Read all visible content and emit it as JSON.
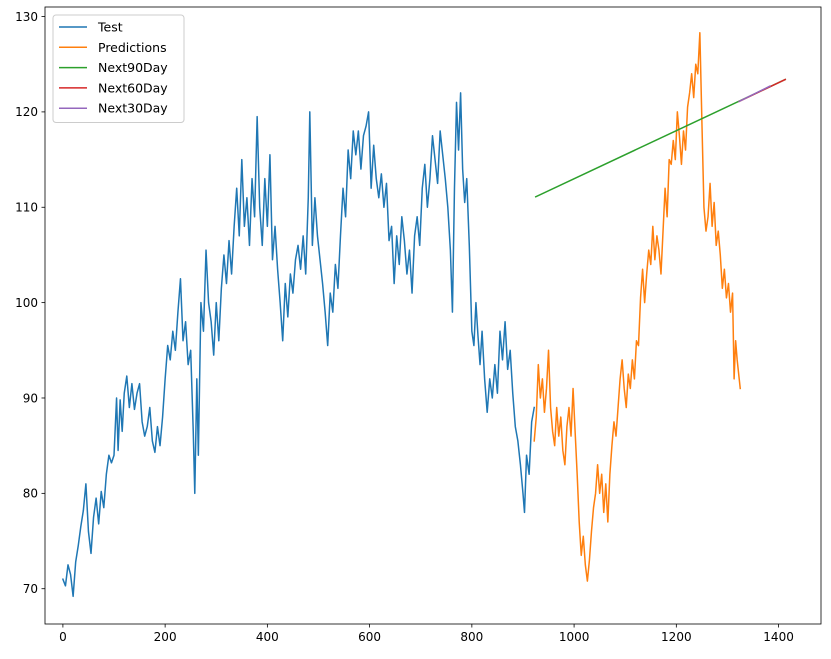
{
  "chart_data": {
    "type": "line",
    "title": "",
    "xlabel": "",
    "ylabel": "",
    "xlim": [
      -35,
      1483
    ],
    "ylim": [
      66.3,
      131.0
    ],
    "xticks": [
      0,
      200,
      400,
      600,
      800,
      1000,
      1200,
      1400
    ],
    "yticks": [
      70,
      80,
      90,
      100,
      110,
      120,
      130
    ],
    "grid": false,
    "legend_position": "top-left",
    "series": [
      {
        "name": "Test",
        "color": "#1f77b4",
        "points": [
          [
            0,
            71
          ],
          [
            5,
            70.3
          ],
          [
            10,
            72.5
          ],
          [
            15,
            71.5
          ],
          [
            20,
            69.2
          ],
          [
            25,
            72.8
          ],
          [
            30,
            74.5
          ],
          [
            35,
            76.5
          ],
          [
            40,
            78.2
          ],
          [
            45,
            81
          ],
          [
            50,
            76
          ],
          [
            55,
            73.7
          ],
          [
            60,
            77.5
          ],
          [
            65,
            79.5
          ],
          [
            70,
            76.8
          ],
          [
            75,
            80.2
          ],
          [
            80,
            78.5
          ],
          [
            85,
            82
          ],
          [
            90,
            84
          ],
          [
            95,
            83.2
          ],
          [
            100,
            84
          ],
          [
            105,
            90
          ],
          [
            108,
            84.5
          ],
          [
            112,
            89.8
          ],
          [
            116,
            86.5
          ],
          [
            120,
            90.5
          ],
          [
            125,
            92.3
          ],
          [
            130,
            89
          ],
          [
            135,
            91.5
          ],
          [
            140,
            88.8
          ],
          [
            145,
            90.5
          ],
          [
            150,
            91.5
          ],
          [
            155,
            87.5
          ],
          [
            160,
            86
          ],
          [
            165,
            87
          ],
          [
            170,
            89
          ],
          [
            175,
            85.5
          ],
          [
            180,
            84.3
          ],
          [
            185,
            87
          ],
          [
            190,
            85
          ],
          [
            195,
            88
          ],
          [
            200,
            92
          ],
          [
            205,
            95.5
          ],
          [
            210,
            94
          ],
          [
            215,
            97
          ],
          [
            220,
            95
          ],
          [
            225,
            99
          ],
          [
            230,
            102.5
          ],
          [
            235,
            96
          ],
          [
            240,
            98
          ],
          [
            245,
            93.5
          ],
          [
            250,
            95
          ],
          [
            255,
            86.5
          ],
          [
            258,
            80
          ],
          [
            262,
            92
          ],
          [
            265,
            84
          ],
          [
            270,
            100
          ],
          [
            275,
            97
          ],
          [
            280,
            105.5
          ],
          [
            285,
            100
          ],
          [
            290,
            98
          ],
          [
            295,
            94.5
          ],
          [
            300,
            100
          ],
          [
            305,
            96
          ],
          [
            310,
            101.5
          ],
          [
            315,
            105
          ],
          [
            320,
            102
          ],
          [
            325,
            106.5
          ],
          [
            330,
            103
          ],
          [
            335,
            108
          ],
          [
            340,
            112
          ],
          [
            345,
            107
          ],
          [
            350,
            115
          ],
          [
            355,
            108
          ],
          [
            360,
            111
          ],
          [
            365,
            106
          ],
          [
            370,
            113
          ],
          [
            375,
            109
          ],
          [
            380,
            119.5
          ],
          [
            385,
            110
          ],
          [
            390,
            106
          ],
          [
            395,
            113
          ],
          [
            400,
            108
          ],
          [
            405,
            115.5
          ],
          [
            410,
            104.5
          ],
          [
            415,
            108
          ],
          [
            420,
            103.5
          ],
          [
            425,
            100
          ],
          [
            430,
            96
          ],
          [
            435,
            102
          ],
          [
            440,
            98.5
          ],
          [
            445,
            103
          ],
          [
            450,
            101
          ],
          [
            455,
            104.5
          ],
          [
            460,
            106
          ],
          [
            465,
            103.5
          ],
          [
            470,
            107
          ],
          [
            475,
            103
          ],
          [
            480,
            111
          ],
          [
            483,
            120
          ],
          [
            488,
            106
          ],
          [
            493,
            111
          ],
          [
            498,
            107
          ],
          [
            503,
            104.5
          ],
          [
            508,
            102
          ],
          [
            513,
            99
          ],
          [
            518,
            95.5
          ],
          [
            523,
            101
          ],
          [
            528,
            99
          ],
          [
            533,
            104
          ],
          [
            538,
            101.5
          ],
          [
            543,
            107
          ],
          [
            548,
            112
          ],
          [
            553,
            109
          ],
          [
            558,
            116
          ],
          [
            563,
            113
          ],
          [
            568,
            118
          ],
          [
            573,
            115.5
          ],
          [
            578,
            118
          ],
          [
            583,
            114
          ],
          [
            588,
            117.5
          ],
          [
            593,
            118.5
          ],
          [
            598,
            120
          ],
          [
            603,
            112
          ],
          [
            608,
            116.5
          ],
          [
            613,
            113
          ],
          [
            618,
            111
          ],
          [
            623,
            113.5
          ],
          [
            628,
            110
          ],
          [
            633,
            112.5
          ],
          [
            638,
            106.5
          ],
          [
            643,
            108
          ],
          [
            648,
            102
          ],
          [
            653,
            107
          ],
          [
            658,
            104
          ],
          [
            663,
            109
          ],
          [
            668,
            106.5
          ],
          [
            673,
            103
          ],
          [
            678,
            105.5
          ],
          [
            683,
            101
          ],
          [
            688,
            107
          ],
          [
            693,
            109
          ],
          [
            698,
            106
          ],
          [
            703,
            112
          ],
          [
            708,
            114.5
          ],
          [
            713,
            110
          ],
          [
            718,
            113
          ],
          [
            723,
            117.5
          ],
          [
            728,
            115
          ],
          [
            733,
            112.5
          ],
          [
            738,
            118
          ],
          [
            743,
            115.5
          ],
          [
            748,
            113
          ],
          [
            753,
            110
          ],
          [
            758,
            105.5
          ],
          [
            762,
            99
          ],
          [
            766,
            112
          ],
          [
            770,
            121
          ],
          [
            774,
            116
          ],
          [
            778,
            122
          ],
          [
            782,
            114
          ],
          [
            786,
            110.5
          ],
          [
            790,
            113
          ],
          [
            795,
            106
          ],
          [
            800,
            97
          ],
          [
            804,
            95.5
          ],
          [
            808,
            100
          ],
          [
            812,
            96.5
          ],
          [
            816,
            93.5
          ],
          [
            820,
            97
          ],
          [
            825,
            92
          ],
          [
            830,
            88.5
          ],
          [
            835,
            92
          ],
          [
            840,
            90
          ],
          [
            845,
            93.5
          ],
          [
            850,
            90.5
          ],
          [
            855,
            97
          ],
          [
            860,
            94
          ],
          [
            865,
            98
          ],
          [
            870,
            93
          ],
          [
            875,
            95
          ],
          [
            880,
            90.5
          ],
          [
            885,
            87
          ],
          [
            890,
            85.5
          ],
          [
            895,
            83
          ],
          [
            900,
            80
          ],
          [
            903,
            78
          ],
          [
            907,
            84
          ],
          [
            912,
            82
          ],
          [
            917,
            87.5
          ],
          [
            922,
            89
          ]
        ]
      },
      {
        "name": "Predictions",
        "color": "#ff7f0e",
        "points": [
          [
            922,
            85.5
          ],
          [
            926,
            88
          ],
          [
            930,
            93.5
          ],
          [
            934,
            90
          ],
          [
            938,
            92
          ],
          [
            942,
            88.5
          ],
          [
            946,
            91
          ],
          [
            950,
            95
          ],
          [
            954,
            89
          ],
          [
            958,
            86.5
          ],
          [
            962,
            85
          ],
          [
            966,
            89
          ],
          [
            970,
            86
          ],
          [
            974,
            88
          ],
          [
            978,
            84.5
          ],
          [
            982,
            83
          ],
          [
            986,
            87
          ],
          [
            990,
            89
          ],
          [
            994,
            86
          ],
          [
            998,
            91
          ],
          [
            1002,
            86.5
          ],
          [
            1006,
            82
          ],
          [
            1010,
            77
          ],
          [
            1014,
            73.5
          ],
          [
            1018,
            75.5
          ],
          [
            1022,
            72.5
          ],
          [
            1026,
            70.8
          ],
          [
            1030,
            73
          ],
          [
            1034,
            76
          ],
          [
            1038,
            78.5
          ],
          [
            1042,
            80
          ],
          [
            1046,
            83
          ],
          [
            1050,
            80
          ],
          [
            1054,
            82
          ],
          [
            1058,
            78
          ],
          [
            1062,
            81
          ],
          [
            1066,
            77
          ],
          [
            1070,
            82
          ],
          [
            1074,
            85
          ],
          [
            1078,
            87.5
          ],
          [
            1082,
            86
          ],
          [
            1086,
            89
          ],
          [
            1090,
            92
          ],
          [
            1094,
            94
          ],
          [
            1098,
            91
          ],
          [
            1102,
            89
          ],
          [
            1106,
            92.5
          ],
          [
            1110,
            91
          ],
          [
            1114,
            94
          ],
          [
            1118,
            92
          ],
          [
            1122,
            96
          ],
          [
            1126,
            95.5
          ],
          [
            1130,
            100.5
          ],
          [
            1134,
            103.5
          ],
          [
            1138,
            100
          ],
          [
            1142,
            103
          ],
          [
            1146,
            105.5
          ],
          [
            1150,
            104
          ],
          [
            1154,
            108
          ],
          [
            1158,
            104.5
          ],
          [
            1162,
            107
          ],
          [
            1166,
            105.5
          ],
          [
            1170,
            103
          ],
          [
            1174,
            107.5
          ],
          [
            1178,
            112
          ],
          [
            1182,
            109
          ],
          [
            1186,
            115
          ],
          [
            1190,
            114.5
          ],
          [
            1194,
            117
          ],
          [
            1198,
            115
          ],
          [
            1202,
            120
          ],
          [
            1206,
            117.5
          ],
          [
            1210,
            114.5
          ],
          [
            1214,
            118
          ],
          [
            1218,
            116
          ],
          [
            1222,
            120.5
          ],
          [
            1226,
            122
          ],
          [
            1230,
            124
          ],
          [
            1234,
            121.5
          ],
          [
            1238,
            125
          ],
          [
            1242,
            124
          ],
          [
            1246,
            128.3
          ],
          [
            1250,
            119
          ],
          [
            1254,
            110
          ],
          [
            1258,
            107.5
          ],
          [
            1262,
            109
          ],
          [
            1266,
            112.5
          ],
          [
            1270,
            108
          ],
          [
            1274,
            110.5
          ],
          [
            1278,
            106
          ],
          [
            1282,
            107.5
          ],
          [
            1286,
            105
          ],
          [
            1290,
            101.5
          ],
          [
            1294,
            103.5
          ],
          [
            1298,
            100.5
          ],
          [
            1302,
            102
          ],
          [
            1306,
            99
          ],
          [
            1310,
            101
          ],
          [
            1313,
            92
          ],
          [
            1316,
            96
          ],
          [
            1319,
            94
          ],
          [
            1322,
            92.5
          ],
          [
            1325,
            91
          ]
        ]
      },
      {
        "name": "Next90Day",
        "color": "#2ca02c",
        "points": [
          [
            925,
            111.1
          ],
          [
            1413,
            123.4
          ]
        ]
      },
      {
        "name": "Next60Day",
        "color": "#d62728",
        "points": [
          [
            1323,
            121.1
          ],
          [
            1413,
            123.4
          ]
        ]
      },
      {
        "name": "Next30Day",
        "color": "#9467bd",
        "points": [
          [
            1323,
            121.1
          ],
          [
            1383,
            122.7
          ]
        ]
      }
    ]
  }
}
